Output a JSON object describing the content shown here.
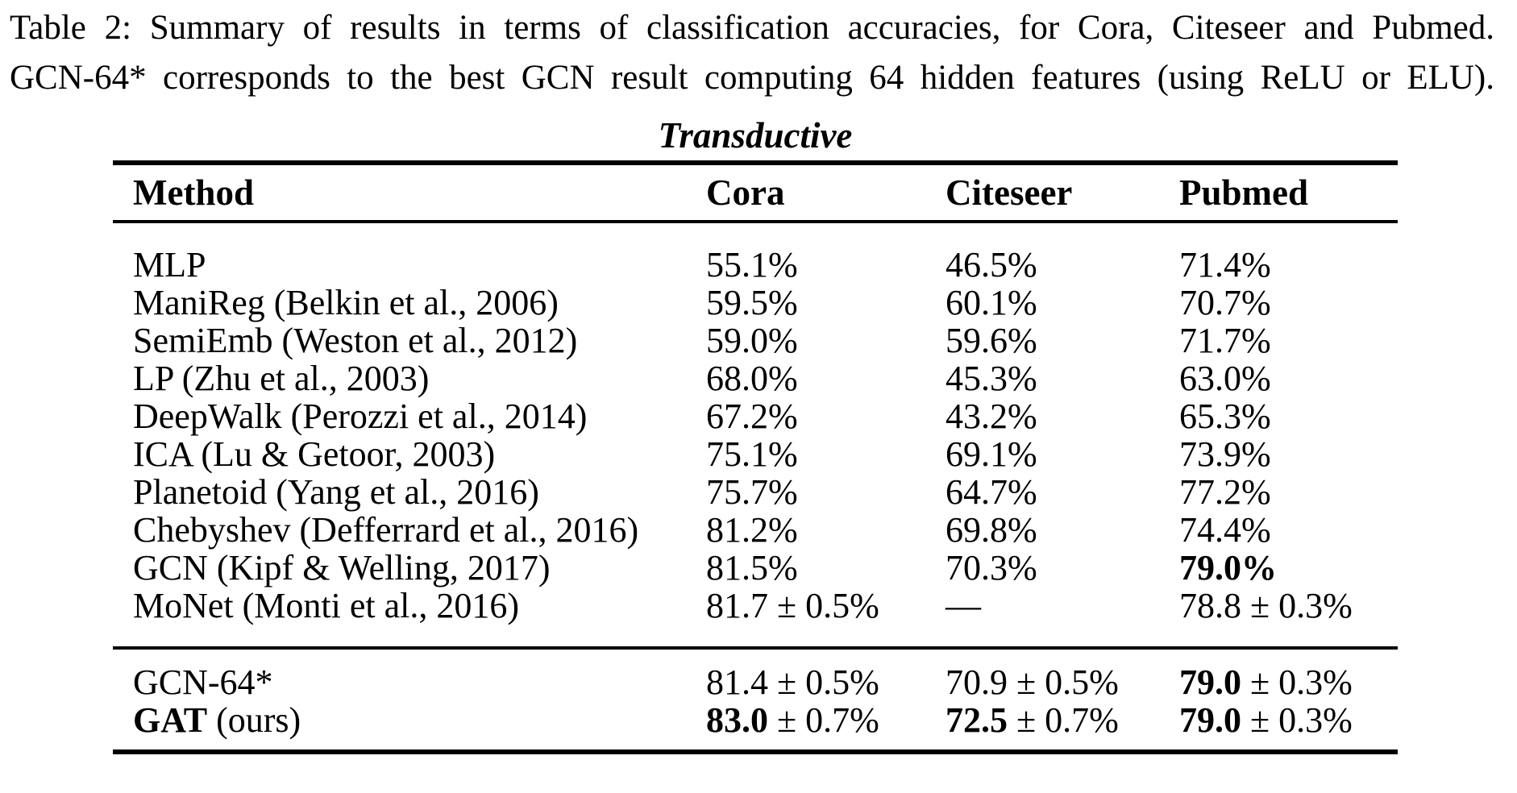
{
  "page": {
    "background_color": "#ffffff",
    "text_color": "#000000"
  },
  "caption": {
    "label": "Table 2:",
    "line1": "Table 2: Summary of results in terms of classification accuracies, for Cora, Citeseer and Pubmed.",
    "line2": "GCN-64* corresponds to the best GCN result computing 64 hidden features (using ReLU or ELU)."
  },
  "table": {
    "section_label": "Transductive",
    "columns": [
      "Method",
      "Cora",
      "Citeseer",
      "Pubmed"
    ],
    "rows_main": [
      {
        "cells": [
          [
            {
              "text": "MLP"
            }
          ],
          [
            {
              "text": "55.1%"
            }
          ],
          [
            {
              "text": "46.5%"
            }
          ],
          [
            {
              "text": "71.4%"
            }
          ]
        ]
      },
      {
        "cells": [
          [
            {
              "text": "ManiReg (Belkin et al., 2006)"
            }
          ],
          [
            {
              "text": "59.5%"
            }
          ],
          [
            {
              "text": "60.1%"
            }
          ],
          [
            {
              "text": "70.7%"
            }
          ]
        ]
      },
      {
        "cells": [
          [
            {
              "text": "SemiEmb (Weston et al., 2012)"
            }
          ],
          [
            {
              "text": "59.0%"
            }
          ],
          [
            {
              "text": "59.6%"
            }
          ],
          [
            {
              "text": "71.7%"
            }
          ]
        ]
      },
      {
        "cells": [
          [
            {
              "text": "LP (Zhu et al., 2003)"
            }
          ],
          [
            {
              "text": "68.0%"
            }
          ],
          [
            {
              "text": "45.3%"
            }
          ],
          [
            {
              "text": "63.0%"
            }
          ]
        ]
      },
      {
        "cells": [
          [
            {
              "text": "DeepWalk (Perozzi et al., 2014)"
            }
          ],
          [
            {
              "text": "67.2%"
            }
          ],
          [
            {
              "text": "43.2%"
            }
          ],
          [
            {
              "text": "65.3%"
            }
          ]
        ]
      },
      {
        "cells": [
          [
            {
              "text": "ICA (Lu & Getoor, 2003)"
            }
          ],
          [
            {
              "text": "75.1%"
            }
          ],
          [
            {
              "text": "69.1%"
            }
          ],
          [
            {
              "text": "73.9%"
            }
          ]
        ]
      },
      {
        "cells": [
          [
            {
              "text": "Planetoid (Yang et al., 2016)"
            }
          ],
          [
            {
              "text": "75.7%"
            }
          ],
          [
            {
              "text": "64.7%"
            }
          ],
          [
            {
              "text": "77.2%"
            }
          ]
        ]
      },
      {
        "cells": [
          [
            {
              "text": "Chebyshev (Defferrard et al., 2016)"
            }
          ],
          [
            {
              "text": "81.2%"
            }
          ],
          [
            {
              "text": "69.8%"
            }
          ],
          [
            {
              "text": "74.4%"
            }
          ]
        ]
      },
      {
        "cells": [
          [
            {
              "text": "GCN (Kipf & Welling, 2017)"
            }
          ],
          [
            {
              "text": "81.5%"
            }
          ],
          [
            {
              "text": "70.3%"
            }
          ],
          [
            {
              "text": "79.0%",
              "bold": true
            }
          ]
        ]
      },
      {
        "cells": [
          [
            {
              "text": "MoNet (Monti et al., 2016)"
            }
          ],
          [
            {
              "text": "81.7 ± 0.5%"
            }
          ],
          [
            {
              "text": "—"
            }
          ],
          [
            {
              "text": "78.8 ± 0.3%"
            }
          ]
        ]
      }
    ],
    "rows_highlight": [
      {
        "cells": [
          [
            {
              "text": "GCN-64*"
            }
          ],
          [
            {
              "text": "81.4 ± 0.5%"
            }
          ],
          [
            {
              "text": "70.9 ± 0.5%"
            }
          ],
          [
            {
              "text": "79.0",
              "bold": true
            },
            {
              "text": " ± 0.3%"
            }
          ]
        ]
      },
      {
        "cells": [
          [
            {
              "text": "GAT",
              "bold": true
            },
            {
              "text": " (ours)"
            }
          ],
          [
            {
              "text": "83.0",
              "bold": true
            },
            {
              "text": " ± 0.7%"
            }
          ],
          [
            {
              "text": "72.5",
              "bold": true
            },
            {
              "text": " ± 0.7%"
            }
          ],
          [
            {
              "text": "79.0",
              "bold": true
            },
            {
              "text": " ± 0.3%"
            }
          ]
        ]
      }
    ]
  }
}
